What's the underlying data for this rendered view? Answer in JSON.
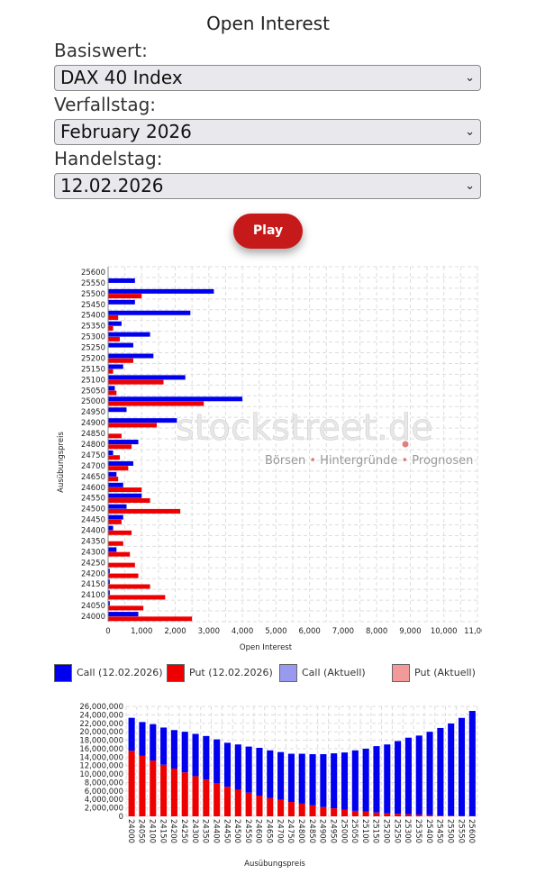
{
  "page": {
    "title": "Open Interest",
    "basiswert_label": "Basiswert:",
    "basiswert_value": "DAX 40 Index",
    "verfallstag_label": "Verfallstag:",
    "verfallstag_value": "February 2026",
    "handelstag_label": "Handelstag:",
    "handelstag_value": "12.02.2026",
    "play_label": "Play",
    "dropdown_icon": "chevron-down-icon"
  },
  "watermark": {
    "brand": "stockstreet.de",
    "tagline": [
      "Börsen",
      "Hintergründe",
      "Prognosen"
    ]
  },
  "legend": [
    {
      "label": "Call (12.02.2026)",
      "color": "#0000ee"
    },
    {
      "label": "Put (12.02.2026)",
      "color": "#ee0000"
    },
    {
      "label": "Call (Aktuell)",
      "color": "#9999f0"
    },
    {
      "label": "Put (Aktuell)",
      "color": "#f29999"
    }
  ],
  "colors": {
    "call": "#0000ee",
    "put": "#ee0000",
    "grid": "#dddddd"
  },
  "chart_data": [
    {
      "type": "bar",
      "orientation": "horizontal",
      "ylabel": "Ausübungspreis",
      "xlabel": "Open Interest",
      "xlim": [
        0,
        11000
      ],
      "xticks": [
        "0",
        "1,000",
        "2,000",
        "3,000",
        "4,000",
        "5,000",
        "6,000",
        "7,000",
        "8,000",
        "9,000",
        "10,000",
        "11,000"
      ],
      "categories": [
        "25600",
        "25550",
        "25500",
        "25450",
        "25400",
        "25350",
        "25300",
        "25250",
        "25200",
        "25150",
        "25100",
        "25050",
        "25000",
        "24950",
        "24900",
        "24850",
        "24800",
        "24750",
        "24700",
        "24650",
        "24600",
        "24550",
        "24500",
        "24450",
        "24400",
        "24350",
        "24300",
        "24250",
        "24200",
        "24150",
        "24100",
        "24050",
        "24000"
      ],
      "series": [
        {
          "name": "Call (12.02.2026)",
          "values": [
            0,
            800,
            3150,
            800,
            2450,
            400,
            1250,
            750,
            1350,
            450,
            2300,
            200,
            4000,
            550,
            2050,
            0,
            900,
            150,
            750,
            250,
            450,
            1000,
            550,
            450,
            150,
            0,
            250,
            0,
            50,
            50,
            50,
            50,
            900
          ]
        },
        {
          "name": "Put (12.02.2026)",
          "values": [
            0,
            0,
            1000,
            0,
            300,
            150,
            350,
            0,
            750,
            150,
            1650,
            250,
            2850,
            0,
            1450,
            400,
            700,
            350,
            600,
            300,
            1000,
            1250,
            2150,
            400,
            700,
            450,
            650,
            800,
            900,
            1250,
            1700,
            1050,
            2500
          ]
        }
      ]
    },
    {
      "type": "bar",
      "stacked": true,
      "xlabel": "Ausübungspreis",
      "ylim": [
        0,
        26000000
      ],
      "yticks": [
        "0",
        "2,000,000",
        "4,000,000",
        "6,000,000",
        "8,000,000",
        "10,000,000",
        "12,000,000",
        "14,000,000",
        "16,000,000",
        "18,000,000",
        "20,000,000",
        "22,000,000",
        "24,000,000",
        "26,000,000"
      ],
      "categories": [
        "24000",
        "24050",
        "24100",
        "24150",
        "24200",
        "24250",
        "24300",
        "24350",
        "24400",
        "24450",
        "24500",
        "24550",
        "24600",
        "24650",
        "24700",
        "24750",
        "24800",
        "24850",
        "24900",
        "24950",
        "25000",
        "25050",
        "25100",
        "25150",
        "25200",
        "25250",
        "25300",
        "25350",
        "25400",
        "25450",
        "25500",
        "25550",
        "25600"
      ],
      "series": [
        {
          "name": "Put",
          "values": [
            15500000,
            14300000,
            13200000,
            12200000,
            11300000,
            10400000,
            9500000,
            8700000,
            7800000,
            7000000,
            6300000,
            5600000,
            4900000,
            4300000,
            3900000,
            3400000,
            3000000,
            2600000,
            2200000,
            1900000,
            1600000,
            1300000,
            1100000,
            900000,
            700000,
            600000,
            500000,
            400000,
            300000,
            200000,
            150000,
            80000,
            30000
          ]
        },
        {
          "name": "Call",
          "values": [
            7800000,
            8000000,
            8600000,
            8800000,
            9100000,
            9600000,
            10000000,
            10300000,
            10400000,
            10400000,
            10700000,
            10900000,
            11300000,
            11300000,
            11300000,
            11400000,
            11800000,
            12100000,
            12500000,
            13000000,
            13500000,
            14300000,
            14900000,
            15700000,
            16300000,
            17200000,
            18100000,
            18700000,
            19700000,
            20700000,
            21800000,
            23200000,
            24900000
          ]
        }
      ]
    }
  ]
}
